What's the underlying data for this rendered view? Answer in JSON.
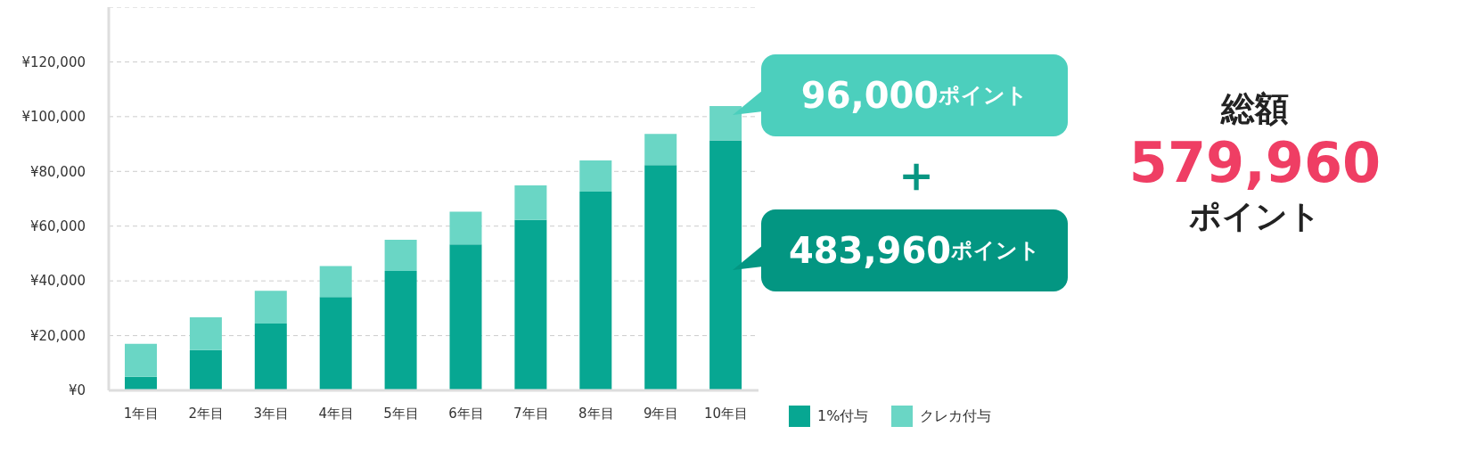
{
  "chart_data": {
    "type": "bar",
    "stacked": true,
    "categories": [
      "1年目",
      "2年目",
      "3年目",
      "4年目",
      "5年目",
      "6年目",
      "7年目",
      "8年目",
      "9年目",
      "10年目"
    ],
    "series": [
      {
        "name": "1%付与",
        "color": "#07a792",
        "values": [
          5000,
          14700,
          24400,
          34100,
          43600,
          53300,
          62300,
          72600,
          82300,
          91300
        ]
      },
      {
        "name": "クレカ付与",
        "color": "#6ad6c5",
        "values": [
          12000,
          12000,
          12000,
          11300,
          11400,
          12000,
          12600,
          11400,
          11400,
          12600
        ]
      }
    ],
    "ylim": [
      0,
      140000
    ],
    "yticks": [
      {
        "value": 0,
        "label": "¥0"
      },
      {
        "value": 20000,
        "label": "¥20,000"
      },
      {
        "value": 40000,
        "label": "¥40,000"
      },
      {
        "value": 60000,
        "label": "¥60,000"
      },
      {
        "value": 80000,
        "label": "¥80,000"
      },
      {
        "value": 100000,
        "label": "¥100,000"
      },
      {
        "value": 120000,
        "label": "¥120,000"
      }
    ],
    "grid": "y",
    "legend": "bottom",
    "annotations": [
      "96,000ポイント",
      "＋",
      "483,960ポイント",
      "総額",
      "579,960",
      "ポイント"
    ]
  }
}
